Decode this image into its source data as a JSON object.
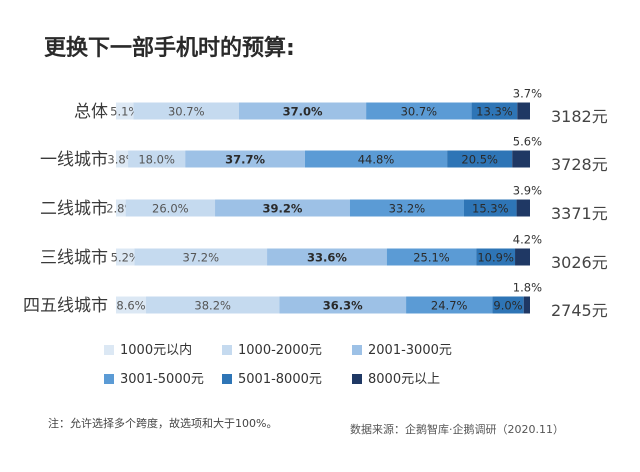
{
  "chart_data": {
    "type": "bar",
    "stacked": true,
    "orientation": "horizontal",
    "title": "更换下一部手机时的预算:",
    "categories": [
      "总体",
      "一线城市",
      "二线城市",
      "三线城市",
      "四五线城市"
    ],
    "series": [
      {
        "name": "1000元以内",
        "color": "#dce8f4",
        "values": [
          5.1,
          3.8,
          2.8,
          5.2,
          8.6
        ]
      },
      {
        "name": "1000-2000元",
        "color": "#c5daef",
        "values": [
          30.7,
          18.0,
          26.0,
          37.2,
          38.2
        ]
      },
      {
        "name": "2001-3000元",
        "color": "#9dc1e6",
        "values": [
          37.0,
          37.7,
          39.2,
          33.6,
          36.3
        ]
      },
      {
        "name": "3001-5000元",
        "color": "#5b9bd5",
        "values": [
          30.7,
          44.8,
          33.2,
          25.1,
          24.7
        ]
      },
      {
        "name": "5001-8000元",
        "color": "#2e75b6",
        "values": [
          13.3,
          20.5,
          15.3,
          10.9,
          9.0
        ]
      },
      {
        "name": "8000元以上",
        "color": "#1f3864",
        "values": [
          3.7,
          5.6,
          3.9,
          4.2,
          1.8
        ]
      }
    ],
    "averages": [
      "3182元",
      "3728元",
      "3371元",
      "3026元",
      "2745元"
    ],
    "legend_position": "bottom-left"
  },
  "footnote": "注：允许选择多个跨度，故选项和大于100%。",
  "source": "数据来源：企鹅智库·企鹅调研（2020.11）"
}
